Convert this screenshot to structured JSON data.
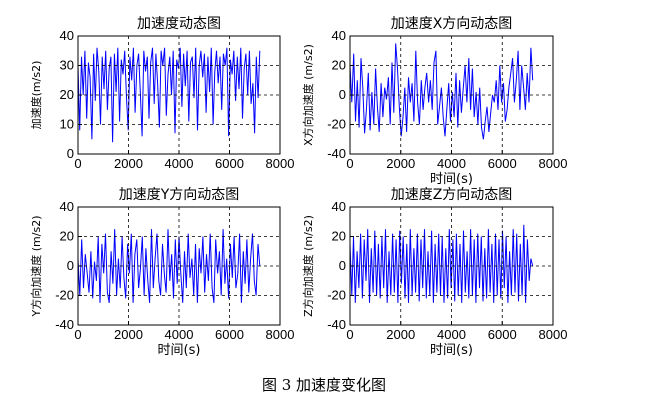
{
  "figure": {
    "caption": "图 3  加速度变化图"
  },
  "style": {
    "line_color": "#0000ff",
    "axis_color": "#000000",
    "grid_color": "#000000"
  },
  "chart_data": [
    {
      "type": "line",
      "title": "加速度动态图",
      "xlabel": "",
      "ylabel": "加速度(m/s2)",
      "xlim": [
        0,
        8000
      ],
      "ylim": [
        0,
        40
      ],
      "xticks": [
        0,
        2000,
        4000,
        6000,
        8000
      ],
      "yticks": [
        0,
        10,
        20,
        30,
        40
      ],
      "grid": true,
      "series": [
        {
          "x_range": [
            0,
            7200
          ],
          "values": [
            30,
            8,
            33,
            20,
            35,
            12,
            31,
            26,
            5,
            34,
            18,
            36,
            28,
            10,
            33,
            22,
            35,
            15,
            29,
            33,
            4,
            34,
            21,
            36,
            11,
            32,
            27,
            35,
            19,
            8,
            33,
            25,
            36,
            14,
            30,
            34,
            21,
            6,
            35,
            28,
            33,
            12,
            31,
            36,
            17,
            34,
            24,
            9,
            35,
            30,
            36,
            13,
            27,
            33,
            20,
            35,
            7,
            32,
            29,
            36,
            16,
            34,
            23,
            35,
            11,
            31,
            33,
            19,
            36,
            8,
            30,
            35,
            26,
            34,
            14,
            33,
            21,
            36,
            10,
            28,
            35,
            24,
            33,
            15,
            34,
            30,
            36,
            6,
            32,
            27,
            35,
            18,
            33,
            22,
            36,
            12,
            29,
            34,
            20,
            35,
            17,
            24,
            7,
            33,
            19,
            35
          ]
        }
      ]
    },
    {
      "type": "line",
      "title": "加速度X方向动态图",
      "xlabel": "时间(s)",
      "ylabel": "X方向加速度 (m/s2)",
      "xlim": [
        0,
        8000
      ],
      "ylim": [
        -40,
        40
      ],
      "xticks": [
        0,
        2000,
        4000,
        6000,
        8000
      ],
      "yticks": [
        -40,
        -20,
        0,
        20,
        40
      ],
      "grid": true,
      "series": [
        {
          "x_range": [
            0,
            7200
          ],
          "values": [
            20,
            -5,
            28,
            -18,
            10,
            -22,
            25,
            5,
            -26,
            -10,
            15,
            -24,
            2,
            -20,
            18,
            -8,
            -25,
            8,
            -15,
            5,
            -3,
            12,
            -20,
            22,
            -12,
            35,
            18,
            -8,
            -28,
            -15,
            5,
            -25,
            12,
            -5,
            8,
            -18,
            30,
            -5,
            -20,
            10,
            -10,
            5,
            15,
            -5,
            10,
            -10,
            22,
            30,
            -20,
            -8,
            5,
            -15,
            -28,
            -10,
            8,
            -18,
            2,
            -15,
            15,
            -22,
            10,
            -12,
            5,
            20,
            -5,
            25,
            -10,
            18,
            -15,
            2,
            -20,
            5,
            -22,
            -30,
            -18,
            -8,
            -25,
            -12,
            0,
            -5,
            10,
            -10,
            20,
            -5,
            8,
            -18,
            -10,
            5,
            15,
            25,
            -5,
            10,
            30,
            -10,
            20,
            5,
            -10,
            15,
            -5,
            32,
            10
          ]
        }
      ]
    },
    {
      "type": "line",
      "title": "加速度Y方向动态图",
      "xlabel": "时间(s)",
      "ylabel": "Y方向加速度 (m/s2)",
      "xlim": [
        0,
        8000
      ],
      "ylim": [
        -40,
        40
      ],
      "xticks": [
        0,
        2000,
        4000,
        6000,
        8000
      ],
      "yticks": [
        -40,
        -20,
        0,
        20,
        40
      ],
      "grid": true,
      "series": [
        {
          "x_range": [
            0,
            7200
          ],
          "values": [
            5,
            -20,
            18,
            -15,
            8,
            -5,
            -18,
            10,
            -22,
            3,
            -10,
            20,
            -25,
            15,
            -5,
            22,
            -18,
            -25,
            10,
            -12,
            25,
            -20,
            5,
            -15,
            20,
            -8,
            -22,
            15,
            -5,
            22,
            -25,
            8,
            18,
            -15,
            -2,
            20,
            -20,
            12,
            -10,
            -25,
            25,
            -15,
            5,
            22,
            -10,
            -20,
            15,
            -5,
            -18,
            25,
            -10,
            8,
            -22,
            18,
            -12,
            20,
            -5,
            -25,
            10,
            -15,
            22,
            -8,
            5,
            -20,
            15,
            -25,
            12,
            -5,
            20,
            -18,
            8,
            -10,
            22,
            -15,
            -25,
            18,
            -5,
            10,
            -20,
            25,
            -12,
            5,
            -22,
            15,
            -8,
            20,
            -15,
            -5,
            22,
            -25,
            10,
            -12,
            18,
            -18,
            5,
            22,
            -10,
            -20,
            15,
            0
          ]
        }
      ]
    },
    {
      "type": "line",
      "title": "加速度Z方向动态图",
      "xlabel": "时间(s)",
      "ylabel": "Z方向加速度 (m/s2)",
      "xlim": [
        0,
        8000
      ],
      "ylim": [
        -40,
        40
      ],
      "xticks": [
        0,
        2000,
        4000,
        6000,
        8000
      ],
      "yticks": [
        -40,
        -20,
        0,
        20,
        40
      ],
      "grid": true,
      "series": [
        {
          "x_range": [
            0,
            7200
          ],
          "values": [
            15,
            -20,
            20,
            -25,
            10,
            -15,
            22,
            -22,
            18,
            -10,
            25,
            -25,
            12,
            -18,
            24,
            -20,
            15,
            -22,
            20,
            -15,
            25,
            -25,
            10,
            -20,
            22,
            -18,
            18,
            -25,
            24,
            -12,
            20,
            -22,
            15,
            -25,
            25,
            -20,
            12,
            -18,
            22,
            -24,
            18,
            -15,
            25,
            -22,
            10,
            -20,
            24,
            -25,
            15,
            -18,
            22,
            -20,
            20,
            -25,
            12,
            -22,
            25,
            -15,
            18,
            -24,
            22,
            -20,
            15,
            -25,
            24,
            -18,
            10,
            -22,
            25,
            -20,
            18,
            -25,
            22,
            -15,
            20,
            -24,
            12,
            -22,
            25,
            -18,
            15,
            -25,
            22,
            -20,
            18,
            -22,
            24,
            -15,
            20,
            -25,
            10,
            -20,
            25,
            -18,
            22,
            -24,
            15,
            -20,
            28,
            -25,
            18,
            -10,
            5,
            0
          ]
        }
      ]
    }
  ]
}
